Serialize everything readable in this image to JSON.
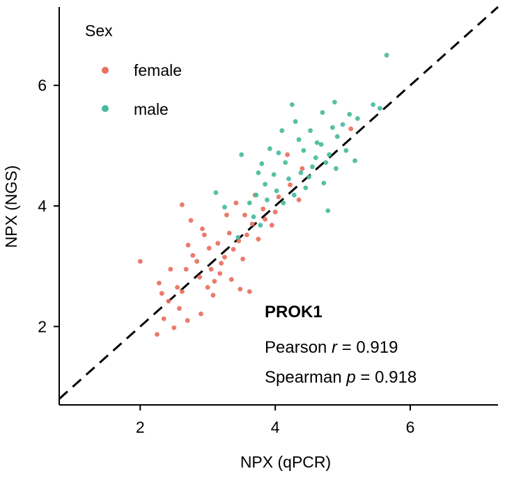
{
  "chart_data": {
    "type": "scatter",
    "xlabel": "NPX (qPCR)",
    "ylabel": "NPX (NGS)",
    "xlim": [
      0.8,
      7.3
    ],
    "ylim": [
      0.7,
      7.3
    ],
    "xticks": [
      2,
      4,
      6
    ],
    "yticks": [
      2,
      4,
      6
    ],
    "xtick_labels": [
      "2",
      "4",
      "6"
    ],
    "ytick_labels": [
      "2",
      "4",
      "6"
    ],
    "grid": false,
    "legend": {
      "title": "Sex",
      "position": "top-left",
      "entries": [
        "female",
        "male"
      ]
    },
    "reference_line": {
      "type": "identity",
      "style": "dashed",
      "color": "#000000"
    },
    "annotation": {
      "title": "PROK1",
      "pearson_prefix": "Pearson ",
      "pearson_symbol": "r",
      "pearson_value": " = 0.919",
      "spearman_prefix": "Spearman ",
      "spearman_symbol": "p",
      "spearman_value": " = 0.918"
    },
    "series": [
      {
        "name": "female",
        "color": "#E8705E",
        "points": [
          [
            2.25,
            1.87
          ],
          [
            2.35,
            2.13
          ],
          [
            2.5,
            1.98
          ],
          [
            2.0,
            3.08
          ],
          [
            2.28,
            2.72
          ],
          [
            2.42,
            2.42
          ],
          [
            2.62,
            4.02
          ],
          [
            2.55,
            2.65
          ],
          [
            2.68,
            2.95
          ],
          [
            2.71,
            3.35
          ],
          [
            2.84,
            3.08
          ],
          [
            2.9,
            2.21
          ],
          [
            2.62,
            2.58
          ],
          [
            2.75,
            3.76
          ],
          [
            2.95,
            3.52
          ],
          [
            3.02,
            3.3
          ],
          [
            3.08,
            2.52
          ],
          [
            3.18,
            2.88
          ],
          [
            3.25,
            3.15
          ],
          [
            3.35,
            2.78
          ],
          [
            3.48,
            2.62
          ],
          [
            3.52,
            3.12
          ],
          [
            3.58,
            3.52
          ],
          [
            3.62,
            2.58
          ],
          [
            3.28,
            3.85
          ],
          [
            3.42,
            4.05
          ],
          [
            3.75,
            3.45
          ],
          [
            3.85,
            3.78
          ],
          [
            3.95,
            3.68
          ],
          [
            2.45,
            2.95
          ],
          [
            2.78,
            3.18
          ],
          [
            2.88,
            2.82
          ],
          [
            3.05,
            2.95
          ],
          [
            3.15,
            3.38
          ],
          [
            3.32,
            3.55
          ],
          [
            3.46,
            3.42
          ],
          [
            3.66,
            3.7
          ],
          [
            3.82,
            3.95
          ],
          [
            4.05,
            4.15
          ],
          [
            4.22,
            4.35
          ],
          [
            4.35,
            4.1
          ],
          [
            4.4,
            4.62
          ],
          [
            4.18,
            4.85
          ],
          [
            5.12,
            5.28
          ],
          [
            3.7,
            4.18
          ],
          [
            2.58,
            2.3
          ],
          [
            2.7,
            2.1
          ],
          [
            3.0,
            2.65
          ],
          [
            3.2,
            3.05
          ],
          [
            3.38,
            3.28
          ],
          [
            2.32,
            2.55
          ],
          [
            2.92,
            3.62
          ],
          [
            3.1,
            2.75
          ],
          [
            3.55,
            3.85
          ],
          [
            4.0,
            3.9
          ]
        ]
      },
      {
        "name": "male",
        "color": "#48BB9E",
        "points": [
          [
            5.65,
            6.5
          ],
          [
            5.55,
            5.62
          ],
          [
            5.45,
            5.68
          ],
          [
            5.1,
            5.52
          ],
          [
            4.88,
            5.72
          ],
          [
            4.7,
            5.55
          ],
          [
            4.25,
            5.68
          ],
          [
            4.35,
            5.1
          ],
          [
            4.52,
            5.25
          ],
          [
            4.62,
            5.05
          ],
          [
            4.8,
            4.85
          ],
          [
            4.92,
            5.15
          ],
          [
            5.05,
            4.92
          ],
          [
            5.18,
            4.75
          ],
          [
            4.42,
            4.92
          ],
          [
            4.15,
            4.72
          ],
          [
            4.05,
            4.88
          ],
          [
            3.98,
            4.52
          ],
          [
            3.85,
            4.36
          ],
          [
            3.72,
            4.18
          ],
          [
            3.62,
            4.05
          ],
          [
            3.75,
            4.55
          ],
          [
            3.5,
            4.85
          ],
          [
            3.45,
            3.48
          ],
          [
            3.25,
            3.98
          ],
          [
            3.12,
            4.22
          ],
          [
            4.2,
            4.45
          ],
          [
            4.45,
            4.3
          ],
          [
            4.72,
            4.38
          ],
          [
            4.78,
            3.92
          ],
          [
            4.55,
            4.65
          ],
          [
            4.9,
            4.62
          ],
          [
            5.0,
            5.35
          ],
          [
            4.3,
            5.4
          ],
          [
            4.1,
            5.25
          ],
          [
            3.92,
            4.95
          ],
          [
            3.8,
            4.7
          ],
          [
            4.6,
            4.8
          ],
          [
            4.68,
            5.02
          ],
          [
            4.85,
            5.3
          ],
          [
            5.22,
            5.45
          ],
          [
            4.38,
            4.55
          ],
          [
            4.02,
            4.25
          ],
          [
            3.88,
            4.1
          ],
          [
            3.68,
            3.82
          ],
          [
            3.78,
            3.68
          ],
          [
            4.12,
            4.05
          ],
          [
            4.28,
            4.18
          ],
          [
            4.5,
            4.48
          ],
          [
            4.75,
            4.72
          ]
        ]
      }
    ]
  }
}
